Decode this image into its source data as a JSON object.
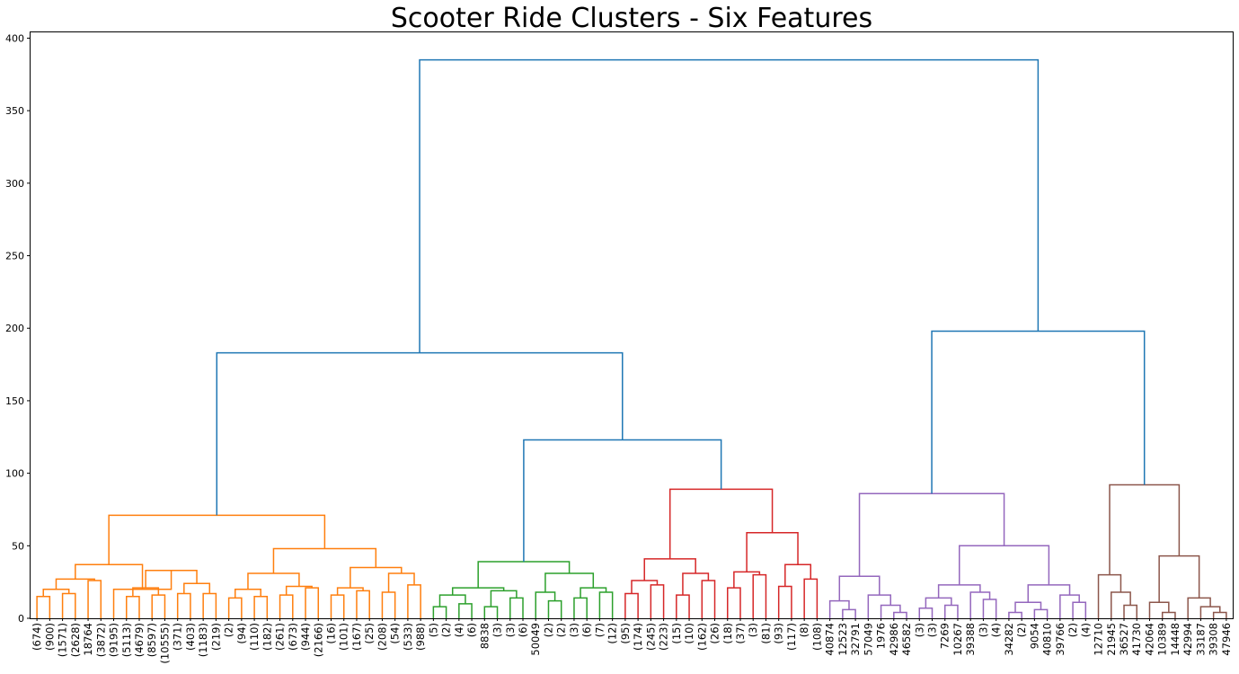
{
  "chart_data": {
    "type": "dendrogram",
    "title": "Scooter Ride Clusters - Six Features",
    "xlabel": "",
    "ylabel": "",
    "ylim": [
      0,
      400
    ],
    "yticks": [
      0,
      50,
      100,
      150,
      200,
      250,
      300,
      350,
      400
    ],
    "grid": false,
    "legend": "none",
    "colors": {
      "link": "#1f77b4",
      "c1": "#ff7f0e",
      "c2": "#2ca02c",
      "c3": "#d62728",
      "c4": "#9467bd",
      "c5": "#8c564b"
    },
    "leaves": [
      "(674)",
      "(900)",
      "(1571)",
      "(2628)",
      "18764",
      "(3872)",
      "(9195)",
      "(5113)",
      "(4679)",
      "(8597)",
      "(10555)",
      "(371)",
      "(403)",
      "(1183)",
      "(219)",
      "(2)",
      "(94)",
      "(110)",
      "(182)",
      "(261)",
      "(673)",
      "(944)",
      "(2166)",
      "(16)",
      "(101)",
      "(167)",
      "(25)",
      "(208)",
      "(54)",
      "(533)",
      "(988)",
      "(5)",
      "(2)",
      "(4)",
      "(6)",
      "8838",
      "(3)",
      "(3)",
      "(6)",
      "50049",
      "(2)",
      "(2)",
      "(3)",
      "(6)",
      "(7)",
      "(12)",
      "(95)",
      "(174)",
      "(245)",
      "(223)",
      "(15)",
      "(10)",
      "(162)",
      "(26)",
      "(18)",
      "(37)",
      "(3)",
      "(81)",
      "(93)",
      "(117)",
      "(8)",
      "(108)",
      "40874",
      "12523",
      "32791",
      "57049",
      "1976",
      "42986",
      "46582",
      "(3)",
      "(3)",
      "7269",
      "10267",
      "39388",
      "(3)",
      "(4)",
      "34282",
      "(2)",
      "9054",
      "40810",
      "39766",
      "(2)",
      "(4)",
      "12710",
      "21945",
      "36527",
      "41730",
      "42064",
      "10389",
      "14448",
      "42994",
      "33187",
      "39308",
      "47946"
    ],
    "merges": [
      {
        "l": 0,
        "r": 1,
        "h": 15.0,
        "c": "c1"
      },
      {
        "l": 2,
        "r": 3,
        "h": 17.0,
        "c": "c1"
      },
      {
        "l": 94,
        "r": 95,
        "h": 20.0,
        "c": "c1"
      },
      {
        "l": 4,
        "r": 5,
        "h": 26.0,
        "c": "c1"
      },
      {
        "l": 96,
        "r": 97,
        "h": 27.0,
        "c": "c1"
      },
      {
        "l": 7,
        "r": 8,
        "h": 15.0,
        "c": "c1"
      },
      {
        "l": 9,
        "r": 10,
        "h": 16.0,
        "c": "c1"
      },
      {
        "l": 99,
        "r": 100,
        "h": 21.0,
        "c": "c1"
      },
      {
        "l": 11,
        "r": 12,
        "h": 17.0,
        "c": "c1"
      },
      {
        "l": 13,
        "r": 14,
        "h": 17.0,
        "c": "c1"
      },
      {
        "l": 102,
        "r": 103,
        "h": 24.0,
        "c": "c1"
      },
      {
        "l": 101,
        "r": 104,
        "h": 33.0,
        "c": "c1"
      },
      {
        "l": 6,
        "r": 105,
        "h": 20.0,
        "c": "c1"
      },
      {
        "l": 98,
        "r": 106,
        "h": 37.0,
        "c": "c1"
      },
      {
        "l": 15,
        "r": 16,
        "h": 14.0,
        "c": "c1"
      },
      {
        "l": 17,
        "r": 18,
        "h": 15.0,
        "c": "c1"
      },
      {
        "l": 108,
        "r": 109,
        "h": 20.0,
        "c": "c1"
      },
      {
        "l": 19,
        "r": 20,
        "h": 16.0,
        "c": "c1"
      },
      {
        "l": 21,
        "r": 22,
        "h": 21.0,
        "c": "c1"
      },
      {
        "l": 111,
        "r": 112,
        "h": 22.0,
        "c": "c1"
      },
      {
        "l": 110,
        "r": 113,
        "h": 31.0,
        "c": "c1"
      },
      {
        "l": 23,
        "r": 24,
        "h": 16.0,
        "c": "c1"
      },
      {
        "l": 25,
        "r": 26,
        "h": 19.0,
        "c": "c1"
      },
      {
        "l": 115,
        "r": 116,
        "h": 21.0,
        "c": "c1"
      },
      {
        "l": 27,
        "r": 28,
        "h": 18.0,
        "c": "c1"
      },
      {
        "l": 29,
        "r": 30,
        "h": 23.0,
        "c": "c1"
      },
      {
        "l": 118,
        "r": 119,
        "h": 31.0,
        "c": "c1"
      },
      {
        "l": 117,
        "r": 120,
        "h": 35.0,
        "c": "c1"
      },
      {
        "l": 114,
        "r": 121,
        "h": 48.0,
        "c": "c1"
      },
      {
        "l": 107,
        "r": 122,
        "h": 71.0,
        "c": "c1"
      },
      {
        "l": 31,
        "r": 32,
        "h": 8.0,
        "c": "c2"
      },
      {
        "l": 33,
        "r": 34,
        "h": 10.0,
        "c": "c2"
      },
      {
        "l": 124,
        "r": 125,
        "h": 16.0,
        "c": "c2"
      },
      {
        "l": 35,
        "r": 36,
        "h": 8.0,
        "c": "c2"
      },
      {
        "l": 37,
        "r": 38,
        "h": 14.0,
        "c": "c2"
      },
      {
        "l": 127,
        "r": 128,
        "h": 19.0,
        "c": "c2"
      },
      {
        "l": 126,
        "r": 129,
        "h": 21.0,
        "c": "c2"
      },
      {
        "l": 40,
        "r": 41,
        "h": 12.0,
        "c": "c2"
      },
      {
        "l": 39,
        "r": 131,
        "h": 18.0,
        "c": "c2"
      },
      {
        "l": 42,
        "r": 43,
        "h": 14.0,
        "c": "c2"
      },
      {
        "l": 44,
        "r": 45,
        "h": 18.0,
        "c": "c2"
      },
      {
        "l": 133,
        "r": 134,
        "h": 21.0,
        "c": "c2"
      },
      {
        "l": 132,
        "r": 135,
        "h": 31.0,
        "c": "c2"
      },
      {
        "l": 130,
        "r": 136,
        "h": 39.0,
        "c": "c2"
      },
      {
        "l": 46,
        "r": 47,
        "h": 17.0,
        "c": "c3"
      },
      {
        "l": 48,
        "r": 49,
        "h": 23.0,
        "c": "c3"
      },
      {
        "l": 138,
        "r": 139,
        "h": 26.0,
        "c": "c3"
      },
      {
        "l": 50,
        "r": 51,
        "h": 16.0,
        "c": "c3"
      },
      {
        "l": 52,
        "r": 53,
        "h": 26.0,
        "c": "c3"
      },
      {
        "l": 141,
        "r": 142,
        "h": 31.0,
        "c": "c3"
      },
      {
        "l": 140,
        "r": 143,
        "h": 41.0,
        "c": "c3"
      },
      {
        "l": 54,
        "r": 55,
        "h": 21.0,
        "c": "c3"
      },
      {
        "l": 56,
        "r": 57,
        "h": 30.0,
        "c": "c3"
      },
      {
        "l": 145,
        "r": 146,
        "h": 32.0,
        "c": "c3"
      },
      {
        "l": 58,
        "r": 59,
        "h": 22.0,
        "c": "c3"
      },
      {
        "l": 60,
        "r": 61,
        "h": 27.0,
        "c": "c3"
      },
      {
        "l": 148,
        "r": 149,
        "h": 37.0,
        "c": "c3"
      },
      {
        "l": 147,
        "r": 150,
        "h": 59.0,
        "c": "c3"
      },
      {
        "l": 144,
        "r": 151,
        "h": 89.0,
        "c": "c3"
      },
      {
        "l": 137,
        "r": 152,
        "h": 123.0,
        "c": "link"
      },
      {
        "l": 123,
        "r": 153,
        "h": 183.0,
        "c": "link"
      },
      {
        "l": 63,
        "r": 64,
        "h": 6.0,
        "c": "c4"
      },
      {
        "l": 62,
        "r": 155,
        "h": 12.0,
        "c": "c4"
      },
      {
        "l": 67,
        "r": 68,
        "h": 4.0,
        "c": "c4"
      },
      {
        "l": 66,
        "r": 157,
        "h": 9.0,
        "c": "c4"
      },
      {
        "l": 65,
        "r": 158,
        "h": 16.0,
        "c": "c4"
      },
      {
        "l": 156,
        "r": 159,
        "h": 29.0,
        "c": "c4"
      },
      {
        "l": 69,
        "r": 70,
        "h": 7.0,
        "c": "c4"
      },
      {
        "l": 71,
        "r": 72,
        "h": 9.0,
        "c": "c4"
      },
      {
        "l": 161,
        "r": 162,
        "h": 14.0,
        "c": "c4"
      },
      {
        "l": 74,
        "r": 75,
        "h": 13.0,
        "c": "c4"
      },
      {
        "l": 73,
        "r": 164,
        "h": 18.0,
        "c": "c4"
      },
      {
        "l": 163,
        "r": 165,
        "h": 23.0,
        "c": "c4"
      },
      {
        "l": 76,
        "r": 77,
        "h": 4.0,
        "c": "c4"
      },
      {
        "l": 78,
        "r": 79,
        "h": 6.0,
        "c": "c4"
      },
      {
        "l": 167,
        "r": 168,
        "h": 11.0,
        "c": "c4"
      },
      {
        "l": 81,
        "r": 82,
        "h": 11.0,
        "c": "c4"
      },
      {
        "l": 80,
        "r": 170,
        "h": 16.0,
        "c": "c4"
      },
      {
        "l": 169,
        "r": 171,
        "h": 23.0,
        "c": "c4"
      },
      {
        "l": 166,
        "r": 172,
        "h": 50.0,
        "c": "c4"
      },
      {
        "l": 160,
        "r": 173,
        "h": 86.0,
        "c": "c4"
      },
      {
        "l": 85,
        "r": 86,
        "h": 9.0,
        "c": "c5"
      },
      {
        "l": 84,
        "r": 175,
        "h": 18.0,
        "c": "c5"
      },
      {
        "l": 83,
        "r": 176,
        "h": 30.0,
        "c": "c5"
      },
      {
        "l": 88,
        "r": 89,
        "h": 4.0,
        "c": "c5"
      },
      {
        "l": 87,
        "r": 178,
        "h": 11.0,
        "c": "c5"
      },
      {
        "l": 92,
        "r": 93,
        "h": 4.0,
        "c": "c5"
      },
      {
        "l": 91,
        "r": 180,
        "h": 8.0,
        "c": "c5"
      },
      {
        "l": 90,
        "r": 181,
        "h": 14.0,
        "c": "c5"
      },
      {
        "l": 179,
        "r": 182,
        "h": 43.0,
        "c": "c5"
      },
      {
        "l": 177,
        "r": 183,
        "h": 92.0,
        "c": "c5"
      },
      {
        "l": 174,
        "r": 184,
        "h": 198.0,
        "c": "link"
      },
      {
        "l": 154,
        "r": 185,
        "h": 385.0,
        "c": "link"
      }
    ]
  }
}
